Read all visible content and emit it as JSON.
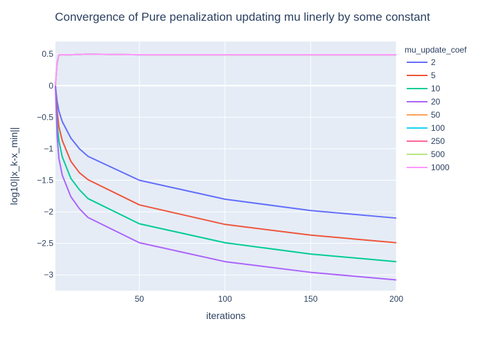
{
  "chart_data": {
    "type": "line",
    "title": "Convergence of Pure penalization updating mu linerly by some constant",
    "xlabel": "iterations",
    "ylabel": "log10||x_k-x_min||",
    "xlim": [
      1,
      200
    ],
    "ylim": [
      -3.25,
      0.7
    ],
    "x_ticks": [
      50,
      100,
      150,
      200
    ],
    "y_ticks": [
      0.5,
      0,
      -0.5,
      -1,
      -1.5,
      -2,
      -2.5,
      -3
    ],
    "y_tick_labels": [
      "0.5",
      "0",
      "−0.5",
      "−1",
      "−1.5",
      "−2",
      "−2.5",
      "−3"
    ],
    "grid": true,
    "legend_title": "mu_update_coef",
    "legend_position": "right",
    "series": [
      {
        "name": "2",
        "color": "#636efa",
        "x": [
          1,
          2,
          3,
          5,
          10,
          15,
          20,
          50,
          100,
          150,
          200
        ],
        "y": [
          0.0,
          -0.25,
          -0.4,
          -0.57,
          -0.83,
          -1.0,
          -1.12,
          -1.5,
          -1.8,
          -1.98,
          -2.1
        ]
      },
      {
        "name": "5",
        "color": "#ef553b",
        "x": [
          1,
          2,
          3,
          5,
          10,
          15,
          20,
          50,
          100,
          150,
          200
        ],
        "y": [
          0.0,
          -0.4,
          -0.65,
          -0.87,
          -1.2,
          -1.38,
          -1.49,
          -1.89,
          -2.2,
          -2.37,
          -2.49
        ]
      },
      {
        "name": "10",
        "color": "#00cc96",
        "x": [
          1,
          2,
          3,
          5,
          10,
          15,
          20,
          50,
          100,
          150,
          200
        ],
        "y": [
          0.0,
          -0.6,
          -0.87,
          -1.13,
          -1.47,
          -1.65,
          -1.79,
          -2.19,
          -2.49,
          -2.67,
          -2.79
        ]
      },
      {
        "name": "20",
        "color": "#ab63fa",
        "x": [
          1,
          2,
          3,
          5,
          10,
          15,
          20,
          50,
          100,
          150,
          200
        ],
        "y": [
          0.0,
          -0.8,
          -1.15,
          -1.42,
          -1.76,
          -1.95,
          -2.09,
          -2.49,
          -2.79,
          -2.96,
          -3.08
        ]
      },
      {
        "name": "50",
        "color": "#ffa15a",
        "x": [
          1,
          2,
          3,
          5,
          10,
          20,
          50,
          100,
          150,
          200
        ],
        "y": [
          0.0,
          0.35,
          0.49,
          0.49,
          0.49,
          0.5,
          0.49,
          0.49,
          0.49,
          0.49
        ]
      },
      {
        "name": "100",
        "color": "#19d3f3",
        "x": [
          1,
          2,
          3,
          5,
          10,
          20,
          50,
          100,
          150,
          200
        ],
        "y": [
          0.0,
          0.36,
          0.49,
          0.49,
          0.49,
          0.5,
          0.49,
          0.49,
          0.49,
          0.49
        ]
      },
      {
        "name": "250",
        "color": "#ff6692",
        "x": [
          1,
          2,
          3,
          5,
          10,
          20,
          50,
          100,
          150,
          200
        ],
        "y": [
          0.0,
          0.37,
          0.49,
          0.49,
          0.49,
          0.5,
          0.49,
          0.49,
          0.49,
          0.49
        ]
      },
      {
        "name": "500",
        "color": "#b6e880",
        "x": [
          1,
          2,
          3,
          5,
          10,
          20,
          50,
          100,
          150,
          200
        ],
        "y": [
          0.0,
          0.38,
          0.49,
          0.49,
          0.49,
          0.5,
          0.49,
          0.49,
          0.49,
          0.49
        ]
      },
      {
        "name": "1000",
        "color": "#ff97ff",
        "x": [
          1,
          2,
          3,
          5,
          10,
          20,
          50,
          100,
          150,
          200
        ],
        "y": [
          0.0,
          0.38,
          0.49,
          0.49,
          0.49,
          0.5,
          0.49,
          0.49,
          0.49,
          0.49
        ]
      }
    ]
  }
}
